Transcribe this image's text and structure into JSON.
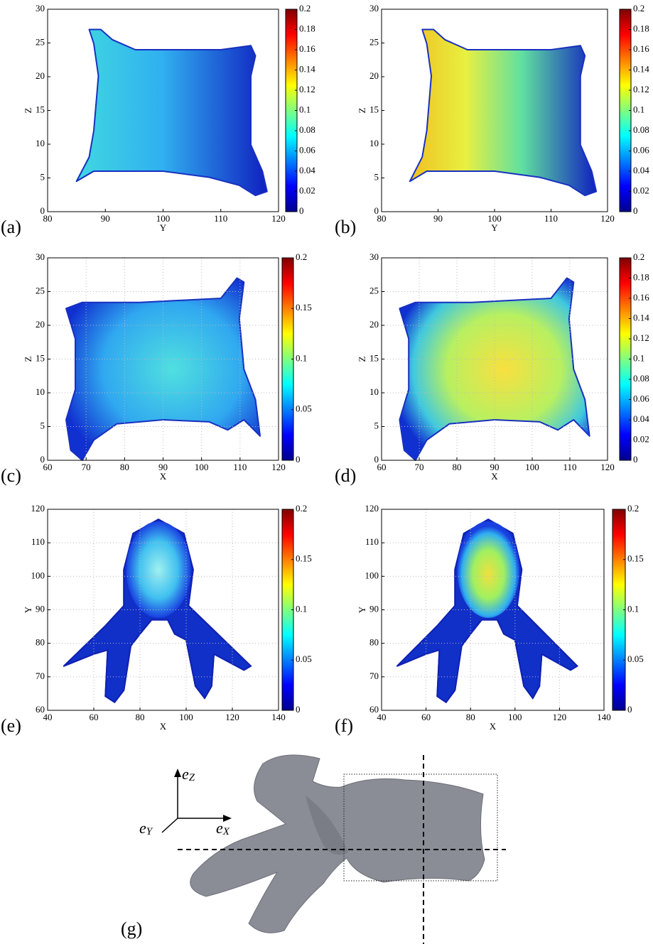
{
  "chart_data": [
    {
      "type": "scatter",
      "panel_label": "(a)",
      "x_label": "Y",
      "y_label": "Z",
      "xlim": [
        80,
        120
      ],
      "xticks": [
        80,
        90,
        100,
        110,
        120
      ],
      "ylim": [
        0,
        30
      ],
      "yticks": [
        0,
        5,
        10,
        15,
        20,
        25,
        30
      ],
      "grid": false,
      "colorbar": {
        "lim": [
          0,
          0.2
        ],
        "ticks": [
          0,
          0.02,
          0.04,
          0.06,
          0.08,
          0.1,
          0.12,
          0.14,
          0.16,
          0.18,
          0.2
        ]
      }
    },
    {
      "type": "scatter",
      "panel_label": "(b)",
      "x_label": "Y",
      "y_label": "Z",
      "xlim": [
        80,
        120
      ],
      "xticks": [
        80,
        90,
        100,
        110,
        120
      ],
      "ylim": [
        0,
        30
      ],
      "yticks": [
        0,
        5,
        10,
        15,
        20,
        25,
        30
      ],
      "grid": false,
      "colorbar": {
        "lim": [
          0,
          0.2
        ],
        "ticks": [
          0,
          0.02,
          0.04,
          0.06,
          0.08,
          0.1,
          0.12,
          0.14,
          0.16,
          0.18,
          0.2
        ]
      }
    },
    {
      "type": "scatter",
      "panel_label": "(c)",
      "x_label": "X",
      "y_label": "Z",
      "xlim": [
        60,
        120
      ],
      "xticks": [
        60,
        70,
        80,
        90,
        100,
        110,
        120
      ],
      "ylim": [
        0,
        30
      ],
      "yticks": [
        0,
        5,
        10,
        15,
        20,
        25,
        30
      ],
      "grid": true,
      "colorbar": {
        "lim": [
          0,
          0.2
        ],
        "ticks": [
          0,
          0.05,
          0.1,
          0.15,
          0.2
        ]
      }
    },
    {
      "type": "scatter",
      "panel_label": "(d)",
      "x_label": "X",
      "y_label": "Z",
      "xlim": [
        60,
        120
      ],
      "xticks": [
        60,
        70,
        80,
        90,
        100,
        110,
        120
      ],
      "ylim": [
        0,
        30
      ],
      "yticks": [
        0,
        5,
        10,
        15,
        20,
        25,
        30
      ],
      "grid": true,
      "colorbar": {
        "lim": [
          0,
          0.2
        ],
        "ticks": [
          0,
          0.02,
          0.04,
          0.06,
          0.08,
          0.1,
          0.12,
          0.14,
          0.16,
          0.18,
          0.2
        ]
      }
    },
    {
      "type": "scatter",
      "panel_label": "(e)",
      "x_label": "X",
      "y_label": "Y",
      "xlim": [
        40,
        140
      ],
      "xticks": [
        40,
        60,
        80,
        100,
        120,
        140
      ],
      "ylim": [
        60,
        120
      ],
      "yticks": [
        60,
        70,
        80,
        90,
        100,
        110,
        120
      ],
      "grid": true,
      "colorbar": {
        "lim": [
          0,
          0.2
        ],
        "ticks": [
          0,
          0.05,
          0.1,
          0.15,
          0.2
        ]
      }
    },
    {
      "type": "scatter",
      "panel_label": "(f)",
      "x_label": "X",
      "y_label": "Y",
      "xlim": [
        40,
        140
      ],
      "xticks": [
        40,
        60,
        80,
        100,
        120,
        140
      ],
      "ylim": [
        60,
        120
      ],
      "yticks": [
        60,
        70,
        80,
        90,
        100,
        110,
        120
      ],
      "grid": true,
      "colorbar": {
        "lim": [
          0,
          0.2
        ],
        "ticks": [
          0,
          0.05,
          0.1,
          0.15,
          0.2
        ]
      }
    }
  ],
  "figure_g": {
    "panel_label": "(g)",
    "axes": [
      {
        "base": "e",
        "sub": "Z"
      },
      {
        "base": "e",
        "sub": "Y"
      },
      {
        "base": "e",
        "sub": "X"
      }
    ]
  }
}
